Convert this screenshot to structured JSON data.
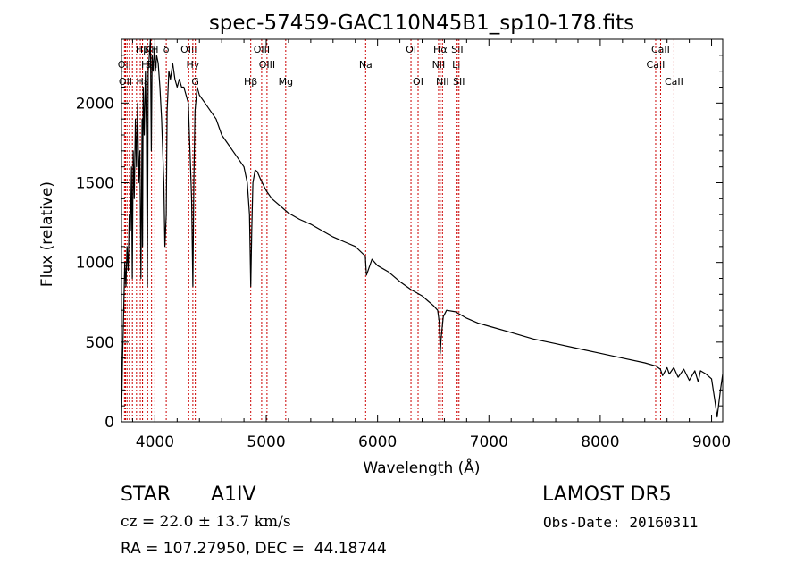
{
  "chart_data": {
    "type": "line",
    "title": "spec-57459-GAC110N45B1_sp10-178.fits",
    "xlabel": "Wavelength (Å)",
    "ylabel": "Flux (relative)",
    "xlim": [
      3700,
      9100
    ],
    "ylim": [
      0,
      2400
    ],
    "xticks": [
      4000,
      5000,
      6000,
      7000,
      8000,
      9000
    ],
    "yticks": [
      0,
      500,
      1000,
      1500,
      2000
    ],
    "grid": false,
    "series": [
      {
        "x": [
          3700,
          3710,
          3720,
          3730,
          3740,
          3750,
          3760,
          3770,
          3780,
          3790,
          3797,
          3805,
          3815,
          3825,
          3835,
          3845,
          3855,
          3865,
          3875,
          3885,
          3889,
          3895,
          3905,
          3915,
          3925,
          3933,
          3940,
          3950,
          3960,
          3968,
          3975,
          3985,
          3995,
          4005,
          4015,
          4030,
          4045,
          4060,
          4080,
          4090,
          4102,
          4110,
          4125,
          4140,
          4160,
          4180,
          4200,
          4220,
          4240,
          4260,
          4280,
          4300,
          4320,
          4330,
          4341,
          4350,
          4360,
          4380,
          4400,
          4450,
          4500,
          4550,
          4600,
          4650,
          4700,
          4750,
          4800,
          4830,
          4850,
          4861,
          4870,
          4880,
          4900,
          4920,
          4950,
          5000,
          5050,
          5100,
          5150,
          5200,
          5300,
          5400,
          5500,
          5600,
          5700,
          5800,
          5890,
          5900,
          5950,
          6000,
          6100,
          6200,
          6300,
          6400,
          6450,
          6500,
          6540,
          6555,
          6563,
          6570,
          6590,
          6620,
          6700,
          6800,
          6900,
          7000,
          7200,
          7400,
          7600,
          7800,
          8000,
          8200,
          8400,
          8500,
          8540,
          8560,
          8600,
          8620,
          8660,
          8700,
          8750,
          8800,
          8850,
          8880,
          8900,
          8950,
          9000,
          9030,
          9050,
          9080,
          9100
        ],
        "y": [
          20,
          400,
          700,
          1000,
          850,
          1100,
          950,
          1300,
          1200,
          1600,
          900,
          1700,
          1400,
          1900,
          1600,
          2000,
          1500,
          1700,
          900,
          1900,
          1100,
          2100,
          1800,
          2200,
          1800,
          850,
          2200,
          2300,
          2400,
          1700,
          2300,
          2200,
          2350,
          2200,
          2300,
          2250,
          2100,
          1900,
          1500,
          1100,
          1300,
          1950,
          2200,
          2150,
          2250,
          2150,
          2100,
          2150,
          2100,
          2100,
          2050,
          2000,
          1600,
          1400,
          850,
          1500,
          1950,
          2100,
          2050,
          2000,
          1950,
          1900,
          1800,
          1750,
          1700,
          1650,
          1600,
          1500,
          1300,
          850,
          1200,
          1500,
          1580,
          1570,
          1520,
          1450,
          1400,
          1370,
          1340,
          1310,
          1270,
          1240,
          1200,
          1160,
          1130,
          1100,
          1040,
          920,
          1020,
          980,
          940,
          880,
          830,
          790,
          760,
          730,
          700,
          620,
          430,
          520,
          660,
          700,
          690,
          650,
          620,
          600,
          560,
          520,
          490,
          460,
          430,
          400,
          370,
          350,
          330,
          290,
          340,
          300,
          340,
          280,
          330,
          260,
          320,
          250,
          320,
          300,
          270,
          130,
          30,
          200,
          300
        ]
      }
    ],
    "lines": [
      {
        "x": 3727,
        "label": "OII",
        "row": 2
      },
      {
        "x": 3736,
        "label": "OII",
        "row": 3
      },
      {
        "x": 3750,
        "label": "",
        "row": 0
      },
      {
        "x": 3771,
        "label": "",
        "row": 0
      },
      {
        "x": 3798,
        "label": "",
        "row": 0
      },
      {
        "x": 3835,
        "label": "",
        "row": 0
      },
      {
        "x": 3869,
        "label": "",
        "row": 0
      },
      {
        "x": 3889,
        "label": "Hβ",
        "row": 1
      },
      {
        "x": 3889,
        "label": "Hε",
        "row": 3
      },
      {
        "x": 3934,
        "label": "K",
        "row": 1
      },
      {
        "x": 3934,
        "label": "Hε",
        "row": 2
      },
      {
        "x": 3970,
        "label": "SII",
        "row": 2
      },
      {
        "x": 4000,
        "label": "H",
        "row": 1
      },
      {
        "x": 4102,
        "label": "δ",
        "row": 1
      },
      {
        "x": 4304,
        "label": "OIII",
        "row": 1
      },
      {
        "x": 4341,
        "label": "Hγ",
        "row": 2
      },
      {
        "x": 4363,
        "label": "G",
        "row": 3
      },
      {
        "x": 4861,
        "label": "Hβ",
        "row": 3
      },
      {
        "x": 4959,
        "label": "OIII",
        "row": 1
      },
      {
        "x": 5007,
        "label": "OIII",
        "row": 2
      },
      {
        "x": 5175,
        "label": "Mg",
        "row": 3
      },
      {
        "x": 5893,
        "label": "Na",
        "row": 2
      },
      {
        "x": 6300,
        "label": "OI",
        "row": 1
      },
      {
        "x": 6364,
        "label": "OI",
        "row": 3
      },
      {
        "x": 6548,
        "label": "NII",
        "row": 2
      },
      {
        "x": 6563,
        "label": "Hα",
        "row": 1
      },
      {
        "x": 6583,
        "label": "NII",
        "row": 3
      },
      {
        "x": 6707,
        "label": "Li",
        "row": 2
      },
      {
        "x": 6716,
        "label": "SII",
        "row": 1
      },
      {
        "x": 6731,
        "label": "SII",
        "row": 3
      },
      {
        "x": 8498,
        "label": "CaII",
        "row": 2
      },
      {
        "x": 8542,
        "label": "CaII",
        "row": 1
      },
      {
        "x": 8662,
        "label": "CaII",
        "row": 3
      }
    ]
  },
  "info": {
    "object_class": "STAR",
    "subclass": "A1IV",
    "survey": "LAMOST DR5",
    "redshift": "cz = 22.0 ± 13.7 km/s",
    "obs_date": "Obs-Date: 20160311",
    "coords": "RA = 107.27950, DEC =  44.18744"
  }
}
